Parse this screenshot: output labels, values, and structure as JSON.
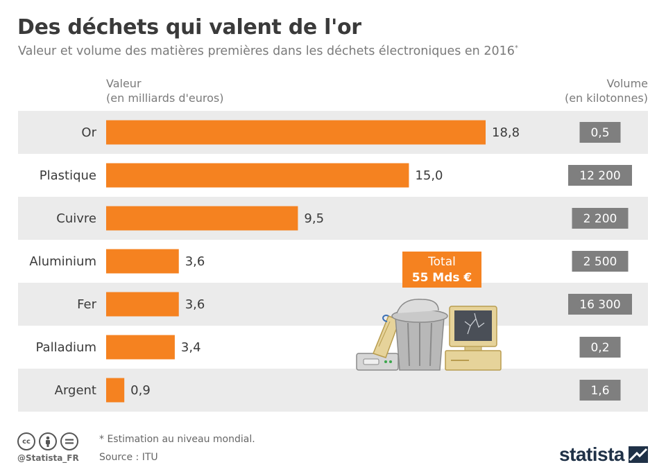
{
  "header": {
    "title": "Des déchets qui valent de l'or",
    "subtitle": "Valeur et volume des matières premières dans les déchets électroniques en 2016",
    "subtitle_mark": "*"
  },
  "columns": {
    "value_line1": "Valeur",
    "value_line2": "(en milliards d'euros)",
    "volume_line1": "Volume",
    "volume_line2": "(en kilotonnes)"
  },
  "total": {
    "label": "Total",
    "amount": "55 Mds €"
  },
  "footer": {
    "note": "* Estimation au niveau mondial.",
    "source": "Source : ITU",
    "handle": "@Statista_FR",
    "brand": "statista",
    "cc_icons": [
      "cc-icon",
      "by-icon",
      "nd-icon"
    ]
  },
  "colors": {
    "bar": "#f58220",
    "row_band": "#ebebeb",
    "volume_badge": "#7f7f7f",
    "text": "#3a3a3a"
  },
  "chart_data": {
    "type": "bar",
    "orientation": "horizontal",
    "categories": [
      "Or",
      "Plastique",
      "Cuivre",
      "Aluminium",
      "Fer",
      "Palladium",
      "Argent"
    ],
    "values": [
      18.8,
      15.0,
      9.5,
      3.6,
      3.6,
      3.4,
      0.9
    ],
    "value_labels": [
      "18,8",
      "15,0",
      "9,5",
      "3,6",
      "3,6",
      "3,4",
      "0,9"
    ],
    "volumes": [
      "0,5",
      "12 200",
      "2 200",
      "2 500",
      "16 300",
      "0,2",
      "1,6"
    ],
    "xlim": [
      0,
      20
    ],
    "grid": false,
    "legend": "none"
  }
}
